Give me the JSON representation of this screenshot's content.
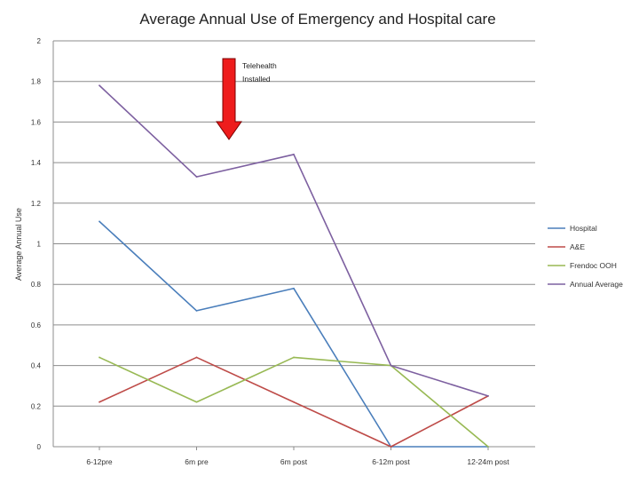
{
  "chart_data": {
    "type": "line",
    "title": "Average Annual Use of Emergency and Hospital care",
    "xlabel": "",
    "ylabel": "Average Annual Use",
    "categories": [
      "6-12pre",
      "6m pre",
      "6m post",
      "6-12m post",
      "12-24m post"
    ],
    "ylim": [
      0,
      2
    ],
    "yticks": [
      "0",
      "0.2",
      "0.4",
      "0.6",
      "0.8",
      "1",
      "1.2",
      "1.4",
      "1.6",
      "1.8",
      "2"
    ],
    "grid": true,
    "legend_position": "right",
    "series": [
      {
        "name": "Hospital",
        "color": "#4a7ebb",
        "values": [
          1.11,
          0.67,
          0.78,
          0,
          0
        ]
      },
      {
        "name": "A&E",
        "color": "#be4b48",
        "values": [
          0.22,
          0.44,
          0.22,
          0,
          0.25
        ]
      },
      {
        "name": "Frendoc OOH",
        "color": "#98b954",
        "values": [
          0.44,
          0.22,
          0.44,
          0.4,
          0
        ]
      },
      {
        "name": "Annual Average",
        "color": "#7d60a0",
        "values": [
          1.78,
          1.33,
          1.44,
          0.4,
          0.25
        ]
      }
    ],
    "annotation": {
      "line1": "Telehealth",
      "line2": "Installed",
      "color": "#ee1c1c",
      "category_index": 1
    }
  }
}
